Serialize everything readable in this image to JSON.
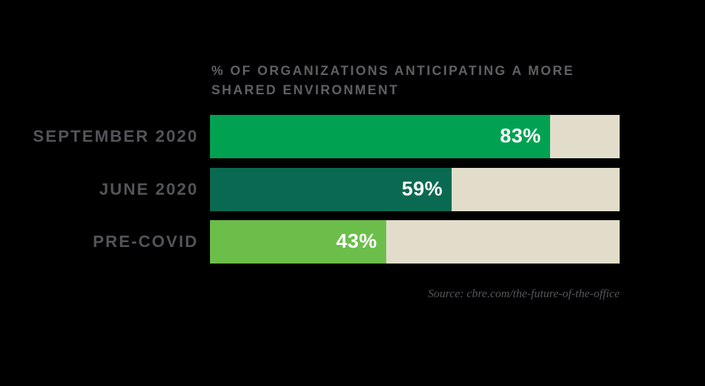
{
  "chart_data": {
    "type": "bar",
    "orientation": "horizontal",
    "title": "% OF ORGANIZATIONS ANTICIPATING A MORE SHARED ENVIRONMENT",
    "title_lines": {
      "line1": "% OF ORGANIZATIONS ANTICIPATING A MORE",
      "line2": "SHARED ENVIRONMENT"
    },
    "categories": [
      "SEPTEMBER 2020",
      "JUNE 2020",
      "PRE-COVID"
    ],
    "values": [
      83,
      59,
      43
    ],
    "value_labels": [
      "83%",
      "59%",
      "43%"
    ],
    "xlim": [
      0,
      100
    ],
    "grid": false,
    "legend": false,
    "bar_colors": [
      "#00a251",
      "#0a6a51",
      "#6cbe4b"
    ],
    "track_color": "#e2ddcb",
    "source": "Source: cbre.com/the-future-of-the-office"
  },
  "colors": {
    "background": "#000000",
    "title_text": "#5e6064",
    "category_text": "#525458",
    "value_text": "#ffffff",
    "source_text": "#54565a"
  }
}
